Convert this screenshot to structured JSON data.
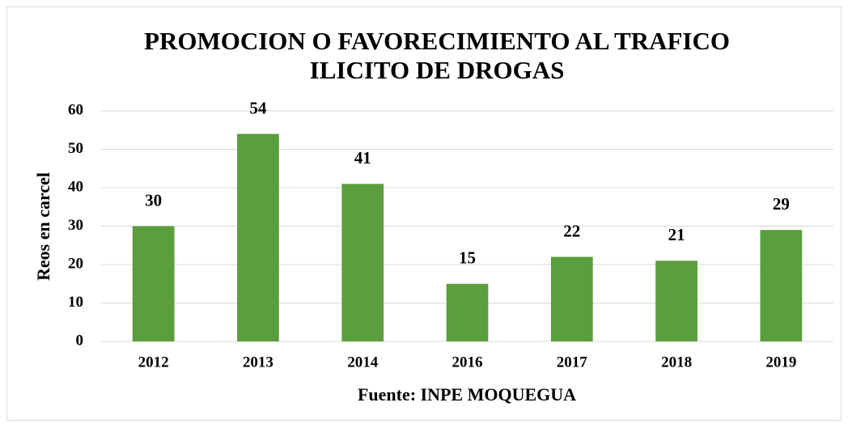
{
  "chart_data": {
    "type": "bar",
    "title": [
      "PROMOCION O FAVORECIMIENTO AL TRAFICO",
      "ILICITO DE DROGAS"
    ],
    "y_label": "Reos en carcel",
    "x_label": "Fuente: INPE MOQUEGUA",
    "categories": [
      "2012",
      "2013",
      "2014",
      "2016",
      "2017",
      "2018",
      "2019"
    ],
    "values": [
      30,
      54,
      41,
      15,
      22,
      21,
      29
    ],
    "color": "#5a9e3e",
    "ylim": [
      0,
      60
    ],
    "yticks": [
      0,
      10,
      20,
      30,
      40,
      50,
      60
    ],
    "grid": true
  }
}
